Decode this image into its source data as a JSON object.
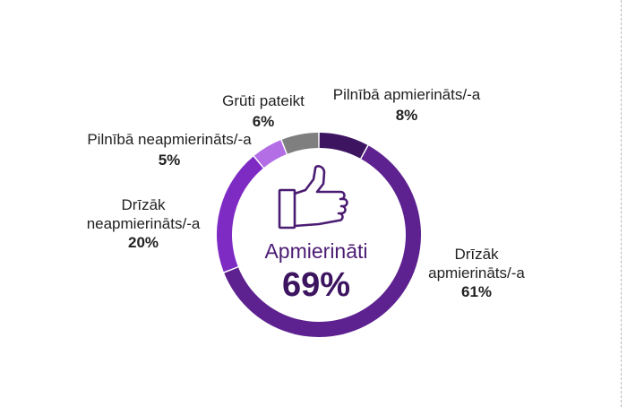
{
  "chart_data": {
    "type": "pie",
    "donut": true,
    "center": {
      "label": "Apmierināti",
      "value": "69%"
    },
    "slices": [
      {
        "name_lines": [
          "Pilnībā apmierināts/-a"
        ],
        "value": 8,
        "label": "8%",
        "color": "#3d1460"
      },
      {
        "name_lines": [
          "Drīzāk",
          "apmierināts/-a"
        ],
        "value": 61,
        "label": "61%",
        "color": "#5d2190"
      },
      {
        "name_lines": [
          "Drīzāk",
          "neapmierināts/-a"
        ],
        "value": 20,
        "label": "20%",
        "color": "#7e2bc4"
      },
      {
        "name_lines": [
          "Pilnībā neapmierināts/-a"
        ],
        "value": 5,
        "label": "5%",
        "color": "#b36ee6"
      },
      {
        "name_lines": [
          "Grūti pateikt"
        ],
        "value": 6,
        "label": "6%",
        "color": "#7f7f7f"
      }
    ],
    "center_icon": "thumbs-up-icon"
  }
}
